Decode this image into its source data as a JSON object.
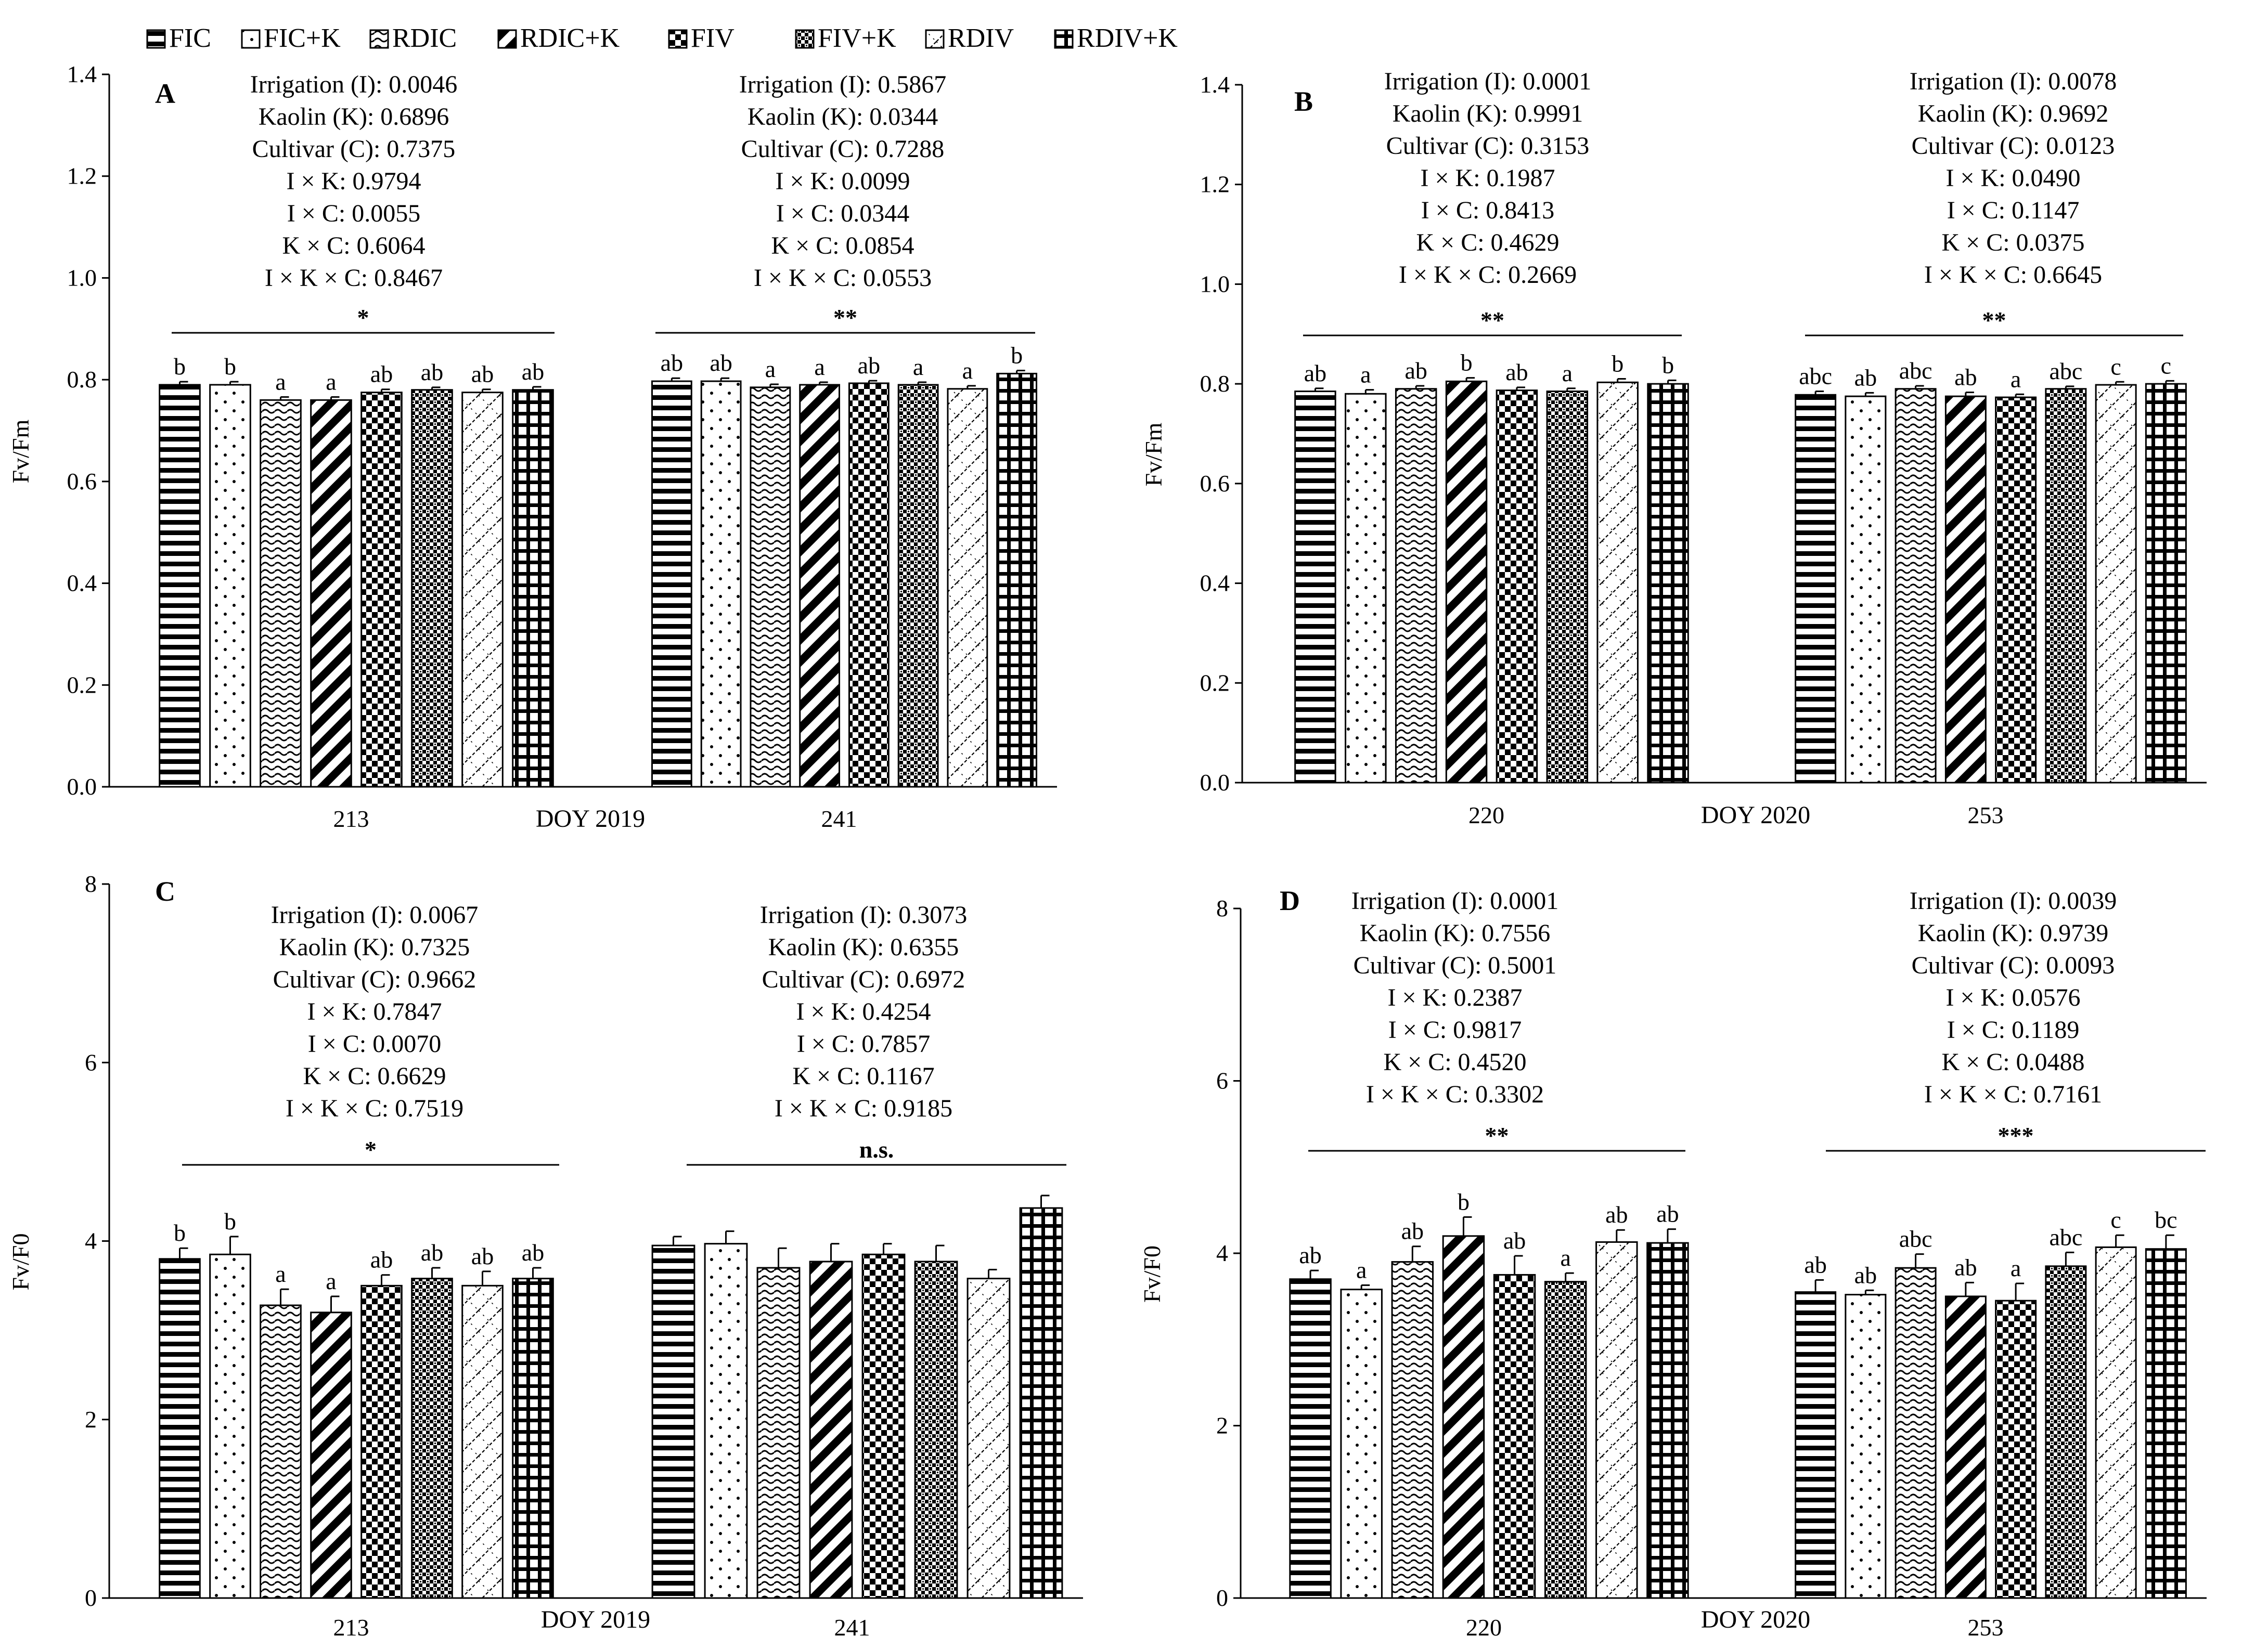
{
  "legend": {
    "items": [
      {
        "label": "FIC",
        "pattern": "hstripe"
      },
      {
        "label": "FIC+K",
        "pattern": "dots"
      },
      {
        "label": "RDIC",
        "pattern": "wave"
      },
      {
        "label": "RDIC+K",
        "pattern": "diag"
      },
      {
        "label": "FIV",
        "pattern": "check"
      },
      {
        "label": "FIV+K",
        "pattern": "smallcheck"
      },
      {
        "label": "RDIV",
        "pattern": "zigzag"
      },
      {
        "label": "RDIV+K",
        "pattern": "grid"
      }
    ]
  },
  "colors": {
    "bar_fill": "#ffffff",
    "ink": "#000000"
  },
  "chart_data": [
    {
      "type": "bar",
      "panel": "A",
      "ylabel": "Fv/Fm",
      "xlabel": "DOY 2019",
      "ylim": [
        0,
        1.4
      ],
      "yticks": [
        "0.0",
        "0.2",
        "0.4",
        "0.6",
        "0.8",
        "1.0",
        "1.2",
        "1.4"
      ],
      "categories": [
        "213",
        "241"
      ],
      "series_names": [
        "FIC",
        "FIC+K",
        "RDIC",
        "RDIC+K",
        "FIV",
        "FIV+K",
        "RDIV",
        "RDIV+K"
      ],
      "groups": [
        {
          "category": "213",
          "values": [
            0.79,
            0.79,
            0.76,
            0.76,
            0.775,
            0.78,
            0.775,
            0.78
          ],
          "errors": [
            0.006,
            0.006,
            0.006,
            0.006,
            0.006,
            0.005,
            0.006,
            0.006
          ],
          "letters": [
            "b",
            "b",
            "a",
            "a",
            "ab",
            "ab",
            "ab",
            "ab"
          ],
          "significance": "*",
          "stats": [
            "Irrigation (I): 0.0046",
            "Kaolin (K): 0.6896",
            "Cultivar (C): 0.7375",
            "I × K: 0.9794",
            "I × C: 0.0055",
            "K × C: 0.6064",
            "I × K × C: 0.8467"
          ]
        },
        {
          "category": "241",
          "values": [
            0.797,
            0.797,
            0.785,
            0.79,
            0.793,
            0.79,
            0.782,
            0.812
          ],
          "errors": [
            0.006,
            0.006,
            0.006,
            0.005,
            0.005,
            0.005,
            0.006,
            0.006
          ],
          "letters": [
            "ab",
            "ab",
            "a",
            "a",
            "ab",
            "a",
            "a",
            "b"
          ],
          "significance": "**",
          "stats": [
            "Irrigation (I): 0.5867",
            "Kaolin (K): 0.0344",
            "Cultivar (C): 0.7288",
            "I × K: 0.0099",
            "I × C: 0.0344",
            "K × C: 0.0854",
            "I × K × C: 0.0553"
          ]
        }
      ]
    },
    {
      "type": "bar",
      "panel": "B",
      "ylabel": "Fv/Fm",
      "xlabel": "DOY 2020",
      "ylim": [
        0,
        1.4
      ],
      "yticks": [
        "0.0",
        "0.2",
        "0.4",
        "0.6",
        "0.8",
        "1.0",
        "1.2",
        "1.4"
      ],
      "categories": [
        "220",
        "253"
      ],
      "series_names": [
        "FIC",
        "FIC+K",
        "RDIC",
        "RDIC+K",
        "FIV",
        "FIV+K",
        "RDIV",
        "RDIV+K"
      ],
      "groups": [
        {
          "category": "220",
          "values": [
            0.785,
            0.78,
            0.79,
            0.805,
            0.787,
            0.785,
            0.803,
            0.8
          ],
          "errors": [
            0.006,
            0.008,
            0.006,
            0.007,
            0.006,
            0.006,
            0.007,
            0.007
          ],
          "letters": [
            "ab",
            "a",
            "ab",
            "b",
            "ab",
            "a",
            "b",
            "b"
          ],
          "significance": "**",
          "stats": [
            "Irrigation (I):  0.0001",
            "Kaolin (K): 0.9991",
            "Cultivar (C): 0.3153",
            "I × K: 0.1987",
            "I × C: 0.8413",
            "K × C: 0.4629",
            "I × K × C: 0.2669"
          ]
        },
        {
          "category": "253",
          "values": [
            0.778,
            0.775,
            0.79,
            0.775,
            0.773,
            0.79,
            0.798,
            0.8
          ],
          "errors": [
            0.007,
            0.007,
            0.006,
            0.008,
            0.006,
            0.005,
            0.006,
            0.006
          ],
          "letters": [
            "abc",
            "ab",
            "abc",
            "ab",
            "a",
            "abc",
            "c",
            "c"
          ],
          "significance": "**",
          "stats": [
            "Irrigation (I): 0.0078",
            "Kaolin (K): 0.9692",
            "Cultivar (C): 0.0123",
            "I × K: 0.0490",
            "I × C: 0.1147",
            "K × C: 0.0375",
            "I × K × C: 0.6645"
          ]
        }
      ]
    },
    {
      "type": "bar",
      "panel": "C",
      "ylabel": "Fv/F0",
      "xlabel": "DOY 2019",
      "ylim": [
        0,
        8
      ],
      "yticks": [
        "0",
        "2",
        "4",
        "6",
        "8"
      ],
      "categories": [
        "213",
        "241"
      ],
      "series_names": [
        "FIC",
        "FIC+K",
        "RDIC",
        "RDIC+K",
        "FIV",
        "FIV+K",
        "RDIV",
        "RDIV+K"
      ],
      "groups": [
        {
          "category": "213",
          "values": [
            3.8,
            3.85,
            3.28,
            3.2,
            3.5,
            3.58,
            3.5,
            3.58
          ],
          "errors": [
            0.12,
            0.2,
            0.18,
            0.18,
            0.12,
            0.12,
            0.16,
            0.12
          ],
          "letters": [
            "b",
            "b",
            "a",
            "a",
            "ab",
            "ab",
            "ab",
            "ab"
          ],
          "significance": "*",
          "stats": [
            "Irrigation (I): 0.0067",
            "Kaolin (K): 0.7325",
            "Cultivar (C): 0.9662",
            "I × K: 0.7847",
            "I × C: 0.0070",
            "K × C: 0.6629",
            "I × K × C: 0.7519"
          ]
        },
        {
          "category": "241",
          "values": [
            3.95,
            3.97,
            3.7,
            3.77,
            3.85,
            3.77,
            3.58,
            4.37
          ],
          "errors": [
            0.1,
            0.14,
            0.22,
            0.2,
            0.12,
            0.18,
            0.1,
            0.14
          ],
          "letters": [
            "",
            "",
            "",
            "",
            "",
            "",
            "",
            ""
          ],
          "significance": "n.s.",
          "stats": [
            "Irrigation (I): 0.3073",
            "Kaolin (K): 0.6355",
            "Cultivar (C): 0.6972",
            "I × K: 0.4254",
            "I × C: 0.7857",
            "K × C: 0.1167",
            "I × K × C: 0.9185"
          ]
        }
      ]
    },
    {
      "type": "bar",
      "panel": "D",
      "ylabel": "Fv/F0",
      "xlabel": "DOY 2020",
      "ylim": [
        0,
        8
      ],
      "yticks": [
        "0",
        "2",
        "4",
        "6",
        "8"
      ],
      "categories": [
        "220",
        "253"
      ],
      "series_names": [
        "FIC",
        "FIC+K",
        "RDIC",
        "RDIC+K",
        "FIV",
        "FIV+K",
        "RDIV",
        "RDIV+K"
      ],
      "groups": [
        {
          "category": "220",
          "values": [
            3.7,
            3.58,
            3.9,
            4.2,
            3.75,
            3.67,
            4.13,
            4.12
          ],
          "errors": [
            0.1,
            0.05,
            0.18,
            0.22,
            0.22,
            0.1,
            0.14,
            0.16
          ],
          "letters": [
            "ab",
            "a",
            "ab",
            "b",
            "ab",
            "a",
            "ab",
            "ab"
          ],
          "significance": "**",
          "stats": [
            "Irrigation (I): 0.0001",
            "Kaolin (K): 0.7556",
            "Cultivar (C): 0.5001",
            "I × K: 0.2387",
            "I × C: 0.9817",
            "K × C: 0.4520",
            "I × K × C: 0.3302"
          ]
        },
        {
          "category": "253",
          "values": [
            3.55,
            3.52,
            3.83,
            3.5,
            3.45,
            3.85,
            4.07,
            4.05
          ],
          "errors": [
            0.14,
            0.05,
            0.16,
            0.16,
            0.2,
            0.16,
            0.14,
            0.16
          ],
          "letters": [
            "ab",
            "ab",
            "abc",
            "ab",
            "a",
            "abc",
            "c",
            "bc"
          ],
          "significance": "***",
          "stats": [
            "Irrigation (I): 0.0039",
            "Kaolin (K): 0.9739",
            "Cultivar (C): 0.0093",
            "I × K: 0.0576",
            "I × C: 0.1189",
            "K × C: 0.0488",
            "I × K × C: 0.7161"
          ]
        }
      ]
    }
  ]
}
